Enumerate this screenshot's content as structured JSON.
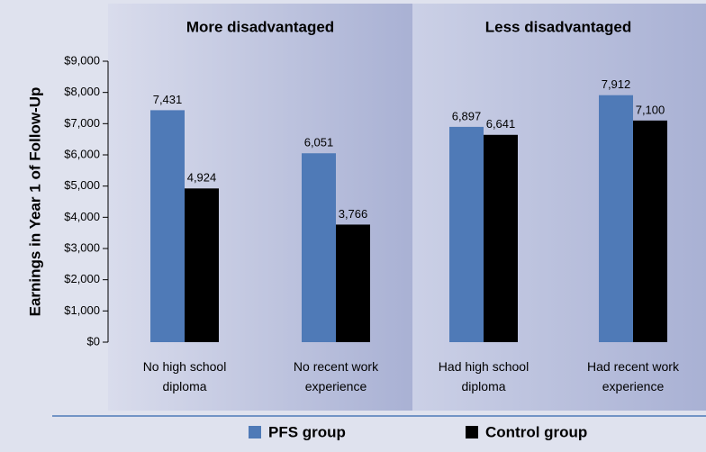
{
  "chart_data": {
    "type": "bar",
    "y_label": "Earnings in Year 1 of Follow-Up",
    "groups": [
      "More disadvantaged",
      "Less disadvantaged"
    ],
    "categories": [
      "No high school diploma",
      "No recent work experience",
      "Had high school diploma",
      "Had recent work experience"
    ],
    "series": [
      {
        "name": "PFS group",
        "color": "#4f7ab7",
        "values": [
          7431,
          6051,
          6897,
          7912
        ],
        "value_labels": [
          "7,431",
          "6,051",
          "6,897",
          "7,912"
        ]
      },
      {
        "name": "Control group",
        "color": "#000000",
        "values": [
          4924,
          3766,
          6641,
          7100
        ],
        "value_labels": [
          "4,924",
          "3,766",
          "6,641",
          "7,100"
        ]
      }
    ],
    "ylim": [
      0,
      9000
    ],
    "yticks": [
      {
        "value": 0,
        "label": "$0"
      },
      {
        "value": 1000,
        "label": "$1,000"
      },
      {
        "value": 2000,
        "label": "$2,000"
      },
      {
        "value": 3000,
        "label": "$3,000"
      },
      {
        "value": 4000,
        "label": "$4,000"
      },
      {
        "value": 5000,
        "label": "$5,000"
      },
      {
        "value": 6000,
        "label": "$6,000"
      },
      {
        "value": 7000,
        "label": "$7,000"
      },
      {
        "value": 8000,
        "label": "$8,000"
      },
      {
        "value": 9000,
        "label": "$9,000"
      }
    ],
    "legend": "bottom"
  }
}
